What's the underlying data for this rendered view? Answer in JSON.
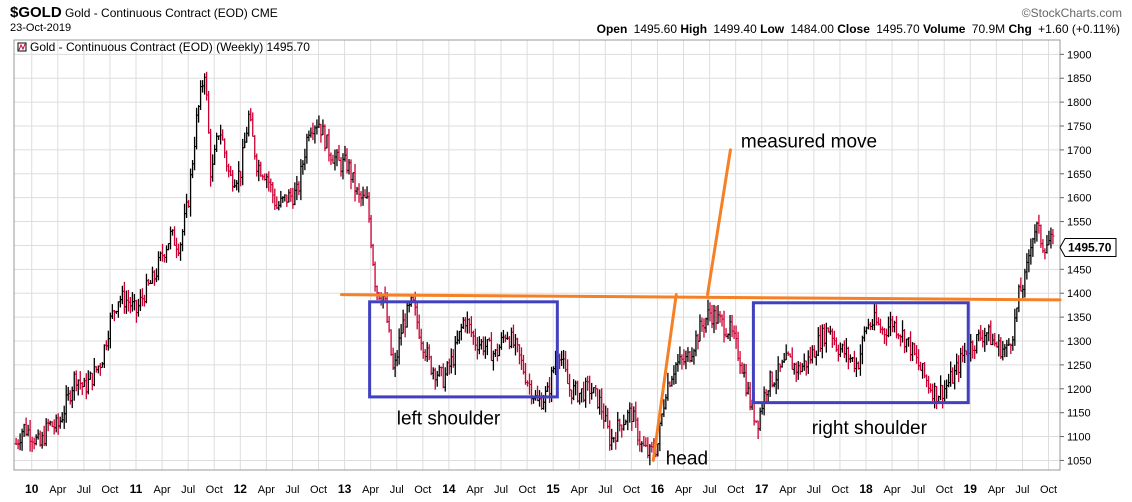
{
  "header": {
    "symbol": "$GOLD",
    "name": "Gold - Continuous Contract (EOD)",
    "exchange": "CME",
    "date": "23-Oct-2019",
    "watermark": "©StockCharts.com",
    "open_label": "Open",
    "open": "1495.60",
    "high_label": "High",
    "high": "1499.40",
    "low_label": "Low",
    "low": "1484.00",
    "close_label": "Close",
    "close": "1495.70",
    "volume_label": "Volume",
    "volume": "70.9M",
    "chg_label": "Chg",
    "chg": "+1.60 (+0.11%)"
  },
  "colors": {
    "up": "#000000",
    "down": "#cc0033",
    "trendline": "#f58025",
    "box": "#4040c0",
    "grid": "#dddddd"
  },
  "chart_data": {
    "type": "ohlc",
    "legend": "Gold - Continuous Contract (EOD) (Weekly) 1495.70",
    "last_value_label": "1495.70",
    "ylim": [
      1030,
      1930
    ],
    "yticks": [
      1050,
      1100,
      1150,
      1200,
      1250,
      1300,
      1350,
      1400,
      1450,
      1500,
      1550,
      1600,
      1650,
      1700,
      1750,
      1800,
      1850,
      1900
    ],
    "grid": true,
    "xlim": [
      2009.83,
      2019.86
    ],
    "xticks": [
      {
        "x": 2010.0,
        "label": "10",
        "year": true
      },
      {
        "x": 2010.25,
        "label": "Apr"
      },
      {
        "x": 2010.5,
        "label": "Jul"
      },
      {
        "x": 2010.75,
        "label": "Oct"
      },
      {
        "x": 2011.0,
        "label": "11",
        "year": true
      },
      {
        "x": 2011.25,
        "label": "Apr"
      },
      {
        "x": 2011.5,
        "label": "Jul"
      },
      {
        "x": 2011.75,
        "label": "Oct"
      },
      {
        "x": 2012.0,
        "label": "12",
        "year": true
      },
      {
        "x": 2012.25,
        "label": "Apr"
      },
      {
        "x": 2012.5,
        "label": "Jul"
      },
      {
        "x": 2012.75,
        "label": "Oct"
      },
      {
        "x": 2013.0,
        "label": "13",
        "year": true
      },
      {
        "x": 2013.25,
        "label": "Apr"
      },
      {
        "x": 2013.5,
        "label": "Jul"
      },
      {
        "x": 2013.75,
        "label": "Oct"
      },
      {
        "x": 2014.0,
        "label": "14",
        "year": true
      },
      {
        "x": 2014.25,
        "label": "Apr"
      },
      {
        "x": 2014.5,
        "label": "Jul"
      },
      {
        "x": 2014.75,
        "label": "Oct"
      },
      {
        "x": 2015.0,
        "label": "15",
        "year": true
      },
      {
        "x": 2015.25,
        "label": "Apr"
      },
      {
        "x": 2015.5,
        "label": "Jul"
      },
      {
        "x": 2015.75,
        "label": "Oct"
      },
      {
        "x": 2016.0,
        "label": "16",
        "year": true
      },
      {
        "x": 2016.25,
        "label": "Apr"
      },
      {
        "x": 2016.5,
        "label": "Jul"
      },
      {
        "x": 2016.75,
        "label": "Oct"
      },
      {
        "x": 2017.0,
        "label": "17",
        "year": true
      },
      {
        "x": 2017.25,
        "label": "Apr"
      },
      {
        "x": 2017.5,
        "label": "Jul"
      },
      {
        "x": 2017.75,
        "label": "Oct"
      },
      {
        "x": 2018.0,
        "label": "18",
        "year": true
      },
      {
        "x": 2018.25,
        "label": "Apr"
      },
      {
        "x": 2018.5,
        "label": "Jul"
      },
      {
        "x": 2018.75,
        "label": "Oct"
      },
      {
        "x": 2019.0,
        "label": "19",
        "year": true
      },
      {
        "x": 2019.25,
        "label": "Apr"
      },
      {
        "x": 2019.5,
        "label": "Jul"
      },
      {
        "x": 2019.75,
        "label": "Oct"
      }
    ],
    "price_path": [
      [
        2009.85,
        1085
      ],
      [
        2009.92,
        1120
      ],
      [
        2010.0,
        1105
      ],
      [
        2010.08,
        1080
      ],
      [
        2010.16,
        1125
      ],
      [
        2010.25,
        1120
      ],
      [
        2010.35,
        1180
      ],
      [
        2010.42,
        1230
      ],
      [
        2010.5,
        1200
      ],
      [
        2010.58,
        1225
      ],
      [
        2010.67,
        1260
      ],
      [
        2010.75,
        1340
      ],
      [
        2010.83,
        1390
      ],
      [
        2010.92,
        1385
      ],
      [
        2011.0,
        1360
      ],
      [
        2011.08,
        1400
      ],
      [
        2011.17,
        1430
      ],
      [
        2011.25,
        1480
      ],
      [
        2011.33,
        1520
      ],
      [
        2011.42,
        1500
      ],
      [
        2011.5,
        1590
      ],
      [
        2011.58,
        1760
      ],
      [
        2011.66,
        1870
      ],
      [
        2011.72,
        1640
      ],
      [
        2011.8,
        1750
      ],
      [
        2011.9,
        1640
      ],
      [
        2012.0,
        1650
      ],
      [
        2012.08,
        1770
      ],
      [
        2012.16,
        1670
      ],
      [
        2012.25,
        1650
      ],
      [
        2012.35,
        1580
      ],
      [
        2012.45,
        1600
      ],
      [
        2012.55,
        1610
      ],
      [
        2012.66,
        1750
      ],
      [
        2012.75,
        1760
      ],
      [
        2012.85,
        1700
      ],
      [
        2012.95,
        1670
      ],
      [
        2013.03,
        1670
      ],
      [
        2013.13,
        1600
      ],
      [
        2013.22,
        1590
      ],
      [
        2013.3,
        1410
      ],
      [
        2013.38,
        1390
      ],
      [
        2013.47,
        1230
      ],
      [
        2013.55,
        1330
      ],
      [
        2013.65,
        1380
      ],
      [
        2013.72,
        1320
      ],
      [
        2013.82,
        1250
      ],
      [
        2013.95,
        1220
      ],
      [
        2014.05,
        1270
      ],
      [
        2014.15,
        1350
      ],
      [
        2014.25,
        1300
      ],
      [
        2014.35,
        1290
      ],
      [
        2014.45,
        1270
      ],
      [
        2014.55,
        1320
      ],
      [
        2014.65,
        1280
      ],
      [
        2014.75,
        1220
      ],
      [
        2014.85,
        1170
      ],
      [
        2014.95,
        1190
      ],
      [
        2015.05,
        1290
      ],
      [
        2015.15,
        1200
      ],
      [
        2015.25,
        1190
      ],
      [
        2015.35,
        1200
      ],
      [
        2015.45,
        1170
      ],
      [
        2015.55,
        1090
      ],
      [
        2015.65,
        1130
      ],
      [
        2015.75,
        1150
      ],
      [
        2015.85,
        1080
      ],
      [
        2015.92,
        1062
      ],
      [
        2016.0,
        1080
      ],
      [
        2016.08,
        1200
      ],
      [
        2016.17,
        1250
      ],
      [
        2016.28,
        1260
      ],
      [
        2016.42,
        1330
      ],
      [
        2016.5,
        1360
      ],
      [
        2016.6,
        1340
      ],
      [
        2016.7,
        1320
      ],
      [
        2016.8,
        1260
      ],
      [
        2016.9,
        1160
      ],
      [
        2016.96,
        1130
      ],
      [
        2017.05,
        1210
      ],
      [
        2017.15,
        1230
      ],
      [
        2017.25,
        1260
      ],
      [
        2017.35,
        1240
      ],
      [
        2017.45,
        1260
      ],
      [
        2017.55,
        1300
      ],
      [
        2017.65,
        1330
      ],
      [
        2017.72,
        1290
      ],
      [
        2017.82,
        1270
      ],
      [
        2017.92,
        1250
      ],
      [
        2018.0,
        1330
      ],
      [
        2018.08,
        1340
      ],
      [
        2018.17,
        1320
      ],
      [
        2018.25,
        1340
      ],
      [
        2018.33,
        1320
      ],
      [
        2018.42,
        1290
      ],
      [
        2018.5,
        1250
      ],
      [
        2018.6,
        1210
      ],
      [
        2018.67,
        1190
      ],
      [
        2018.75,
        1200
      ],
      [
        2018.85,
        1230
      ],
      [
        2018.95,
        1280
      ],
      [
        2019.05,
        1300
      ],
      [
        2019.15,
        1320
      ],
      [
        2019.25,
        1290
      ],
      [
        2019.35,
        1280
      ],
      [
        2019.42,
        1330
      ],
      [
        2019.47,
        1400
      ],
      [
        2019.53,
        1430
      ],
      [
        2019.58,
        1510
      ],
      [
        2019.63,
        1540
      ],
      [
        2019.7,
        1500
      ],
      [
        2019.76,
        1510
      ],
      [
        2019.81,
        1495
      ]
    ],
    "trendlines": [
      {
        "name": "neckline",
        "points": [
          [
            2012.97,
            1397
          ],
          [
            2019.86,
            1386
          ]
        ]
      },
      {
        "name": "head-rise",
        "points": [
          [
            2015.96,
            1050
          ],
          [
            2016.18,
            1397
          ]
        ]
      },
      {
        "name": "measured-move",
        "points": [
          [
            2016.48,
            1397
          ],
          [
            2016.7,
            1700
          ]
        ]
      }
    ],
    "boxes": [
      {
        "name": "left-shoulder",
        "x": [
          2013.24,
          2015.04
        ],
        "y": [
          1183,
          1382
        ]
      },
      {
        "name": "right-shoulder",
        "x": [
          2016.92,
          2018.98
        ],
        "y": [
          1171,
          1380
        ]
      }
    ],
    "annotations": [
      {
        "name": "measured-move-label",
        "text": "measured move",
        "x": 2016.8,
        "y": 1705
      },
      {
        "name": "left-shoulder-label",
        "text": "left shoulder",
        "x": 2013.5,
        "y": 1125
      },
      {
        "name": "head-label",
        "text": "head",
        "x": 2016.08,
        "y": 1042
      },
      {
        "name": "right-shoulder-label",
        "text": "right shoulder",
        "x": 2017.48,
        "y": 1105
      }
    ]
  }
}
